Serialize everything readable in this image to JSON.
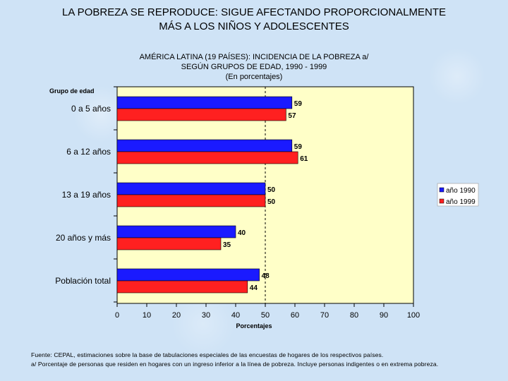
{
  "title": {
    "line1": "LA POBREZA SE REPRODUCE: SIGUE AFECTANDO PROPORCIONALMENTE",
    "line2": "MÁS A LOS NIÑOS Y ADOLESCENTES"
  },
  "chart_data": {
    "type": "bar",
    "orientation": "horizontal",
    "title_lines": [
      "AMÉRICA LATINA (19 PAÍSES): INCIDENCIA DE LA POBREZA a/",
      "SEGÚN GRUPOS DE EDAD, 1990 - 1999",
      "(En porcentajes)"
    ],
    "categories": [
      "0 a 5 años",
      "6 a 12 años",
      "13 a 19 años",
      "20 años y más",
      "Población total"
    ],
    "category_axis_title": "Grupo de edad",
    "series": [
      {
        "name": "año 1990",
        "color": "#1a1aff",
        "values": [
          59,
          59,
          50,
          40,
          48
        ]
      },
      {
        "name": "año 1999",
        "color": "#ff2020",
        "values": [
          57,
          61,
          50,
          35,
          44
        ]
      }
    ],
    "xlabel": "Porcentajes",
    "xlim": [
      0,
      100
    ],
    "xticks": [
      0,
      10,
      20,
      30,
      40,
      50,
      60,
      70,
      80,
      90,
      100
    ],
    "reference_line": 50,
    "plot_background": "#ffffc8",
    "legend_position": "right"
  },
  "source": {
    "line1": "Fuente: CEPAL, estimaciones sobre la base de tabulaciones especiales de las encuestas de hogares de los respectivos países.",
    "line2": "a/ Porcentaje de personas que residen en hogares con un ingreso inferior a la línea de pobreza. Incluye personas indigentes o en extrema pobreza."
  }
}
